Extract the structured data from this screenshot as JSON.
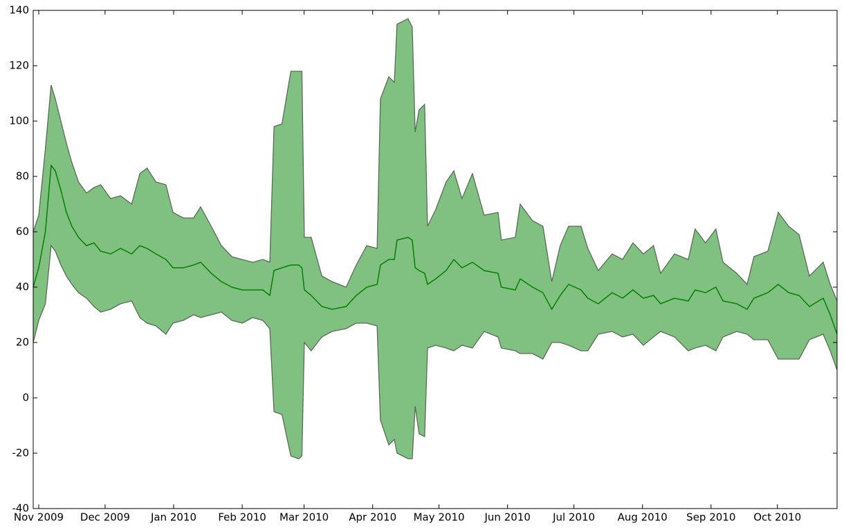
{
  "chart_data": {
    "type": "line",
    "x": [
      -2.5,
      0,
      3,
      5.6,
      7.5,
      10,
      12.5,
      15,
      18,
      21.6,
      25,
      28,
      32.5,
      37,
      42,
      45.7,
      49,
      53,
      57.5,
      60.7,
      65.4,
      70,
      73.2,
      78,
      82.6,
      87.3,
      92,
      96.7,
      101.3,
      104.5,
      106.4,
      110,
      114,
      117.6,
      119,
      120.1,
      123.2,
      128,
      132.6,
      139,
      143.6,
      148.3,
      153,
      154.5,
      158.3,
      160.8,
      162,
      167,
      168.9,
      170.2,
      172,
      174.5,
      175.8,
      179.5,
      184.2,
      187.7,
      191.4,
      196.1,
      201.4,
      207.7,
      209.2,
      215.5,
      217.7,
      223.3,
      228,
      232,
      235.8,
      239.6,
      245.2,
      248.3,
      253,
      259.3,
      264,
      268.7,
      273.4,
      278,
      281.2,
      287.5,
      293.7,
      296.8,
      301.5,
      306.2,
      309.4,
      315.6,
      320.3,
      323.4,
      329.7,
      334.4,
      339.1,
      343.8,
      348.5,
      354.7,
      357.9,
      361
    ],
    "series": [
      {
        "color": "#008000",
        "values": [
          40,
          47,
          60,
          84,
          82,
          75,
          67,
          62,
          58,
          55,
          56,
          53,
          52,
          54,
          52,
          55,
          54,
          52,
          50,
          47,
          47,
          48,
          49,
          45,
          42,
          40,
          39,
          39,
          39,
          37,
          46,
          47,
          48,
          48,
          47,
          39,
          37,
          33,
          32,
          33,
          37,
          40,
          41,
          48,
          50,
          50,
          57,
          58,
          57,
          47,
          46,
          45,
          41,
          43,
          46,
          50,
          47,
          49,
          46,
          45,
          40,
          39,
          43,
          40,
          38,
          32,
          37,
          41,
          39,
          36,
          34,
          38,
          36,
          39,
          36,
          37,
          34,
          36,
          35,
          39,
          38,
          40,
          35,
          34,
          32,
          36,
          38,
          41,
          38,
          37,
          33,
          36,
          30,
          23
        ]
      }
    ],
    "band": {
      "color": "#80c080",
      "edgecolor": "#5a6a5a",
      "upper": [
        60,
        66,
        90,
        113,
        108,
        100,
        92,
        85,
        78,
        74,
        76,
        77,
        72,
        73,
        70,
        81,
        83,
        78,
        77,
        67,
        65,
        65,
        69,
        62,
        55,
        51,
        50,
        49,
        50,
        49,
        98,
        99,
        118,
        118,
        118,
        58,
        58,
        44,
        42,
        40,
        48,
        55,
        54,
        108,
        116,
        114,
        135,
        137,
        134,
        96,
        104,
        106,
        62,
        68,
        78,
        82,
        72,
        81,
        66,
        67,
        57,
        58,
        70,
        64,
        62,
        42,
        55,
        62,
        62,
        54,
        46,
        52,
        50,
        56,
        52,
        55,
        45,
        52,
        50,
        61,
        56,
        61,
        49,
        45,
        41,
        51,
        53,
        67,
        62,
        59,
        44,
        49,
        41,
        35
      ],
      "lower": [
        20,
        28,
        34,
        55,
        53,
        48,
        44,
        41,
        38,
        36,
        33,
        31,
        32,
        34,
        35,
        29,
        27,
        26,
        23,
        27,
        28,
        30,
        29,
        30,
        31,
        28,
        27,
        29,
        28,
        25,
        -5,
        -6,
        -21,
        -22,
        -21,
        20,
        17,
        22,
        24,
        25,
        27,
        27,
        26,
        -8,
        -17,
        -15,
        -20,
        -22,
        -22,
        -3,
        -13,
        -14,
        18,
        19,
        18,
        17,
        19,
        18,
        24,
        22,
        18,
        17,
        16,
        16,
        14,
        20,
        20,
        19,
        17,
        17,
        23,
        24,
        22,
        23,
        19,
        22,
        24,
        22,
        17,
        18,
        19,
        17,
        22,
        24,
        23,
        21,
        21,
        14,
        14,
        14,
        21,
        23,
        17,
        10
      ]
    },
    "xlim": [
      -2.5,
      361
    ],
    "xticks": [
      {
        "value": 0,
        "label": "Nov 2009"
      },
      {
        "value": 30,
        "label": "Dec 2009"
      },
      {
        "value": 61,
        "label": "Jan 2010"
      },
      {
        "value": 92,
        "label": "Feb 2010"
      },
      {
        "value": 120,
        "label": "Mar 2010"
      },
      {
        "value": 151,
        "label": "Apr 2010"
      },
      {
        "value": 181,
        "label": "May 2010"
      },
      {
        "value": 212,
        "label": "Jun 2010"
      },
      {
        "value": 242,
        "label": "Jul 2010"
      },
      {
        "value": 273,
        "label": "Aug 2010"
      },
      {
        "value": 304,
        "label": "Sep 2010"
      },
      {
        "value": 334,
        "label": "Oct 2010"
      }
    ],
    "ylim": [
      -40,
      140
    ],
    "yticks": [
      -40,
      -20,
      0,
      20,
      40,
      60,
      80,
      100,
      120,
      140
    ]
  }
}
